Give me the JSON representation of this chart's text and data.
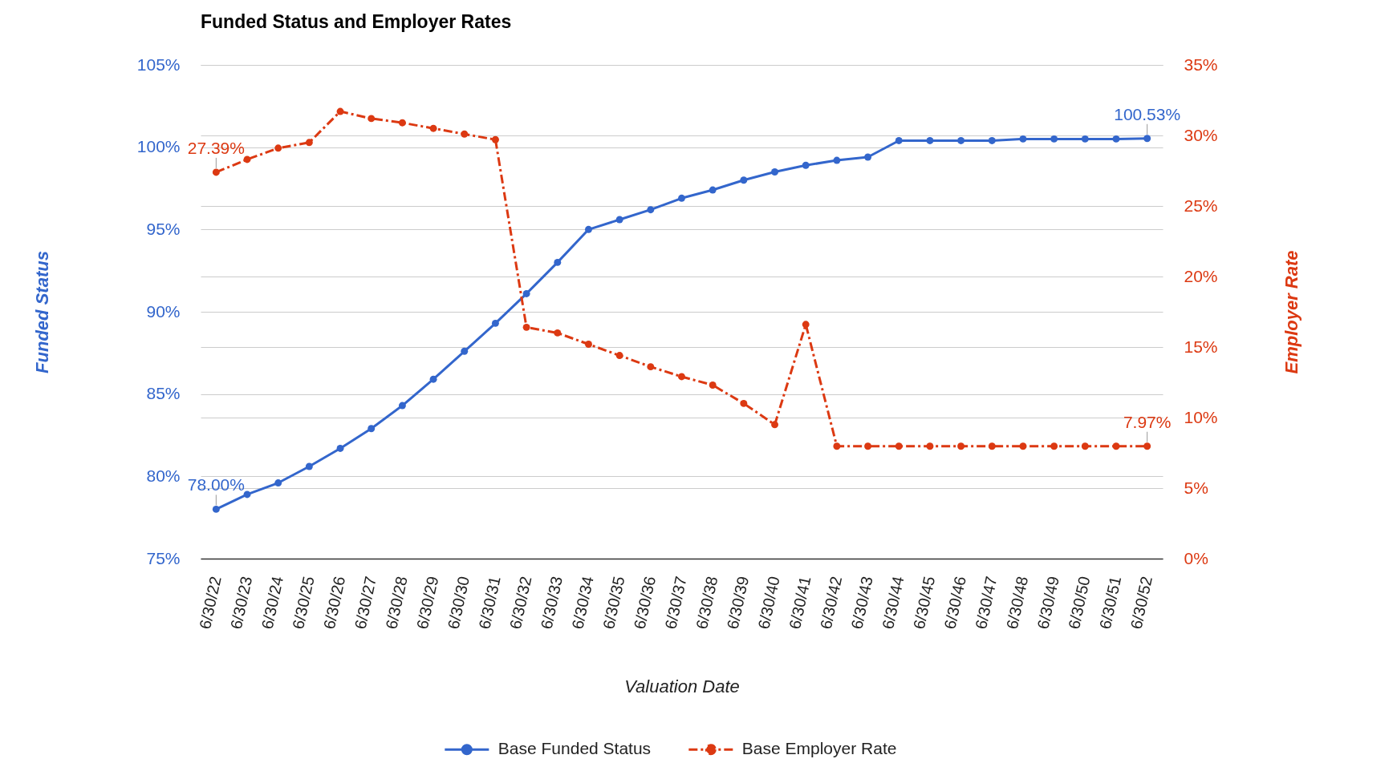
{
  "chart_data": {
    "type": "line",
    "title": "Funded Status and Employer Rates",
    "xlabel": "Valuation Date",
    "ylabel": "Funded Status",
    "y2label": "Employer Rate",
    "categories": [
      "6/30/22",
      "6/30/23",
      "6/30/24",
      "6/30/25",
      "6/30/26",
      "6/30/27",
      "6/30/28",
      "6/30/29",
      "6/30/30",
      "6/30/31",
      "6/30/32",
      "6/30/33",
      "6/30/34",
      "6/30/35",
      "6/30/36",
      "6/30/37",
      "6/30/38",
      "6/30/39",
      "6/30/40",
      "6/30/41",
      "6/30/42",
      "6/30/43",
      "6/30/44",
      "6/30/45",
      "6/30/46",
      "6/30/47",
      "6/30/48",
      "6/30/49",
      "6/30/50",
      "6/30/51",
      "6/30/52"
    ],
    "series": [
      {
        "name": "Base Funded Status",
        "color": "#3366cc",
        "axis": "y",
        "line_style": "solid",
        "values": [
          78.0,
          78.9,
          79.6,
          80.6,
          81.7,
          82.9,
          84.3,
          85.9,
          87.6,
          89.3,
          91.1,
          93.0,
          95.0,
          95.6,
          96.2,
          96.9,
          97.4,
          98.0,
          98.5,
          98.9,
          99.2,
          99.4,
          100.4,
          100.4,
          100.4,
          100.4,
          100.5,
          100.5,
          100.5,
          100.5,
          100.53
        ],
        "value_labels": [
          "78.00%",
          null,
          null,
          null,
          null,
          null,
          null,
          null,
          null,
          null,
          null,
          null,
          null,
          null,
          null,
          null,
          null,
          null,
          null,
          null,
          null,
          null,
          null,
          null,
          null,
          null,
          null,
          null,
          null,
          null,
          "100.53%"
        ]
      },
      {
        "name": "Base Employer Rate",
        "color": "#dc3912",
        "axis": "y2",
        "line_style": "dashed",
        "values": [
          27.39,
          28.3,
          29.1,
          29.5,
          31.7,
          31.2,
          30.9,
          30.5,
          30.1,
          29.7,
          16.4,
          16.0,
          15.2,
          14.4,
          13.6,
          12.9,
          12.3,
          11.0,
          9.5,
          16.6,
          7.97,
          7.97,
          7.97,
          7.97,
          7.97,
          7.97,
          7.97,
          7.97,
          7.97,
          7.97,
          7.97
        ],
        "value_labels": [
          "27.39%",
          null,
          null,
          null,
          null,
          null,
          null,
          null,
          null,
          null,
          null,
          null,
          null,
          null,
          null,
          null,
          null,
          null,
          null,
          null,
          null,
          null,
          null,
          null,
          null,
          null,
          null,
          null,
          null,
          null,
          "7.97%"
        ]
      }
    ],
    "ylim": [
      75,
      105
    ],
    "yticks": [
      {
        "value": 75,
        "label": "75%"
      },
      {
        "value": 80,
        "label": "80%"
      },
      {
        "value": 85,
        "label": "85%"
      },
      {
        "value": 90,
        "label": "90%"
      },
      {
        "value": 95,
        "label": "95%"
      },
      {
        "value": 100,
        "label": "100%"
      },
      {
        "value": 105,
        "label": "105%"
      }
    ],
    "y2lim": [
      0,
      35
    ],
    "y2ticks": [
      {
        "value": 0,
        "label": "0%"
      },
      {
        "value": 5,
        "label": "5%"
      },
      {
        "value": 10,
        "label": "10%"
      },
      {
        "value": 15,
        "label": "15%"
      },
      {
        "value": 20,
        "label": "20%"
      },
      {
        "value": 25,
        "label": "25%"
      },
      {
        "value": 30,
        "label": "30%"
      },
      {
        "value": 35,
        "label": "35%"
      }
    ],
    "grid": true,
    "legend": "bottom",
    "marker": "circle"
  }
}
